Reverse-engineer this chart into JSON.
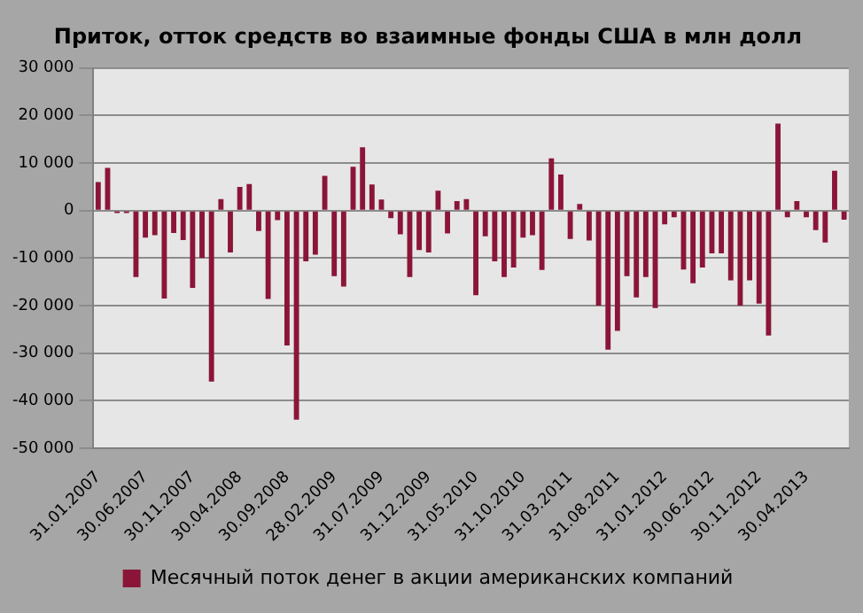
{
  "chart_data": {
    "type": "bar",
    "title": "Приток, отток средств во взаимные фонды США в млн долл",
    "categories": [
      "31.01.2007",
      null,
      null,
      null,
      null,
      "30.06.2007",
      null,
      null,
      null,
      null,
      "30.11.2007",
      null,
      null,
      null,
      null,
      "30.04.2008",
      null,
      null,
      null,
      null,
      "30.09.2008",
      null,
      null,
      null,
      null,
      "28.02.2009",
      null,
      null,
      null,
      null,
      "31.07.2009",
      null,
      null,
      null,
      null,
      "31.12.2009",
      null,
      null,
      null,
      null,
      "31.05.2010",
      null,
      null,
      null,
      null,
      "31.10.2010",
      null,
      null,
      null,
      null,
      "31.03.2011",
      null,
      null,
      null,
      null,
      "31.08.2011",
      null,
      null,
      null,
      null,
      "31.01.2012",
      null,
      null,
      null,
      null,
      "30.06.2012",
      null,
      null,
      null,
      null,
      "30.11.2012",
      null,
      null,
      null,
      null,
      "30.04.2013",
      null,
      null,
      null,
      null
    ],
    "series": [
      {
        "name": "Месячный поток денег в акции американских компаний",
        "color": "#8b1538",
        "values": [
          6000,
          9000,
          -500,
          -500,
          -14000,
          -5700,
          -5200,
          -18500,
          -4700,
          -6200,
          -16300,
          -10000,
          -36000,
          2400,
          -8800,
          5000,
          5600,
          -4300,
          -18600,
          -2000,
          -28400,
          -44000,
          -10700,
          -9300,
          7300,
          -13800,
          -16000,
          9200,
          13300,
          5500,
          2300,
          -1600,
          -5000,
          -14000,
          -8300,
          -8800,
          4200,
          -4800,
          2000,
          2400,
          -17800,
          -5400,
          -10700,
          -14000,
          -12000,
          -5700,
          -5200,
          -12500,
          11000,
          7600,
          -6000,
          1400,
          -6300,
          -20000,
          -29300,
          -25300,
          -13800,
          -18300,
          -14000,
          -20500,
          -2900,
          -1400,
          -12400,
          -15300,
          -12000,
          -9000,
          -9000,
          -14700,
          -20000,
          -14700,
          -19600,
          -26300,
          18300,
          -1400,
          2000,
          -1400,
          -4100,
          -6700,
          8400,
          -1900
        ]
      }
    ],
    "ylim": [
      -50000,
      30000
    ],
    "yticks": [
      {
        "value": -50000,
        "label": "-50 000"
      },
      {
        "value": -40000,
        "label": "-40 000"
      },
      {
        "value": -30000,
        "label": "-30 000"
      },
      {
        "value": -20000,
        "label": "-20 000"
      },
      {
        "value": -10000,
        "label": "-10 000"
      },
      {
        "value": 0,
        "label": "0"
      },
      {
        "value": 10000,
        "label": "10 000"
      },
      {
        "value": 20000,
        "label": "20 000"
      },
      {
        "value": 30000,
        "label": "30 000"
      }
    ],
    "grid": "y",
    "legend": "bottom"
  }
}
